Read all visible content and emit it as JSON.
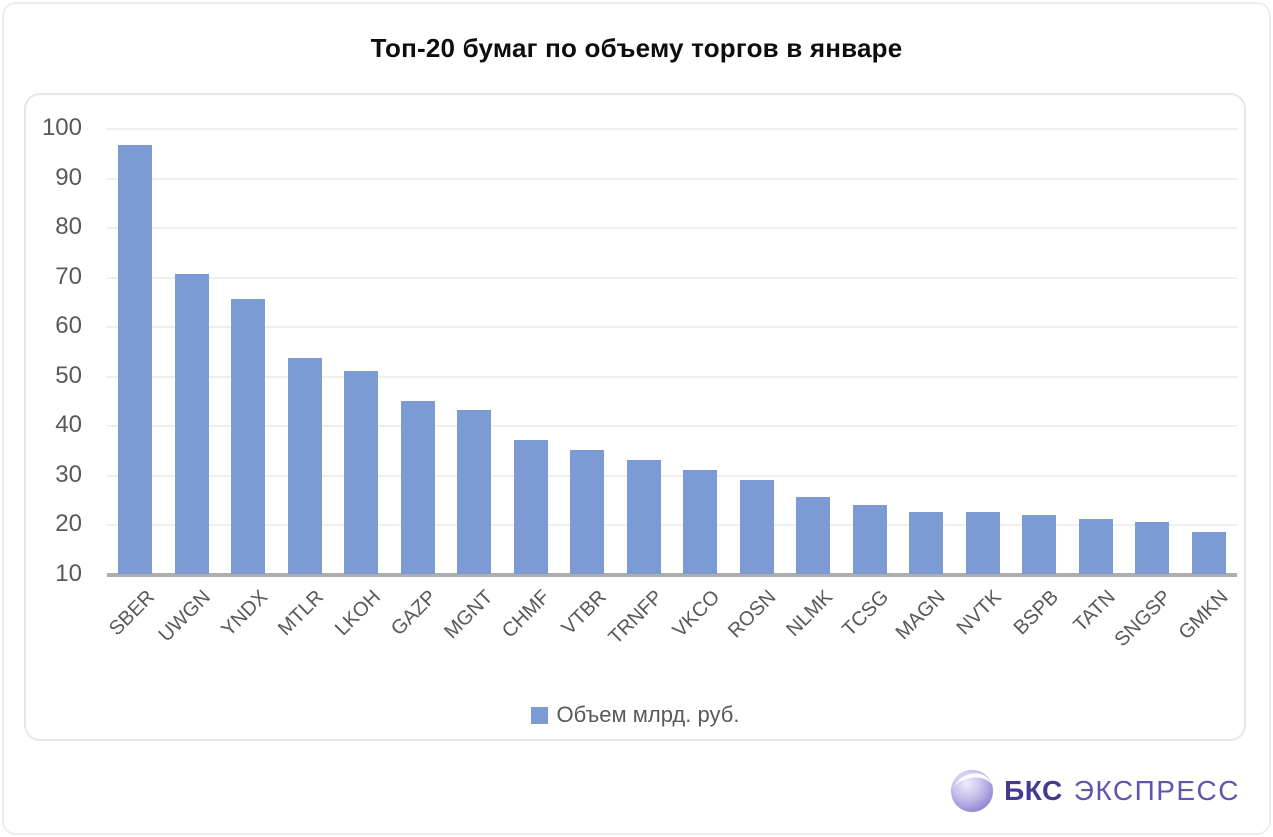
{
  "title": "Топ-20 бумаг по объему торгов в январе",
  "chart_data": {
    "type": "bar",
    "title": "Топ-20 бумаг по объему торгов в январе",
    "categories": [
      "SBER",
      "UWGN",
      "YNDX",
      "MTLR",
      "LKOH",
      "GAZP",
      "MGNT",
      "CHMF",
      "VTBR",
      "TRNFP",
      "VKCO",
      "ROSN",
      "NLMK",
      "TCSG",
      "MAGN",
      "NVTK",
      "BSPB",
      "TATN",
      "SNGSP",
      "GMKN"
    ],
    "values": [
      96.5,
      70.5,
      65.5,
      53.5,
      51,
      45,
      43,
      37,
      35,
      33,
      31,
      29,
      25.5,
      24,
      22.5,
      22.5,
      22,
      21,
      20.5,
      18.5
    ],
    "series_name": "Объем млрд. руб.",
    "xlabel": "",
    "ylabel": "",
    "ylim": [
      10,
      100
    ],
    "yticks": [
      10,
      20,
      30,
      40,
      50,
      60,
      70,
      80,
      90,
      100
    ],
    "ytick_step": 10,
    "grid": true,
    "legend_position": "bottom",
    "bar_color": "#7c9ad3"
  },
  "legend": {
    "label": "Объем млрд. руб."
  },
  "branding": {
    "brand_bold": "БКС",
    "brand_rest": "ЭКСПРЕСС",
    "icon": "sphere-icon",
    "color_bold": "#443a92",
    "color_rest": "#6156ae"
  },
  "colors": {
    "bar": "#7c9ad3",
    "axis_line": "#adadad",
    "gridline": "#efefef",
    "tick_text": "#595959",
    "panel_border": "#e7e7e7",
    "title_text": "#0d0d0d"
  }
}
